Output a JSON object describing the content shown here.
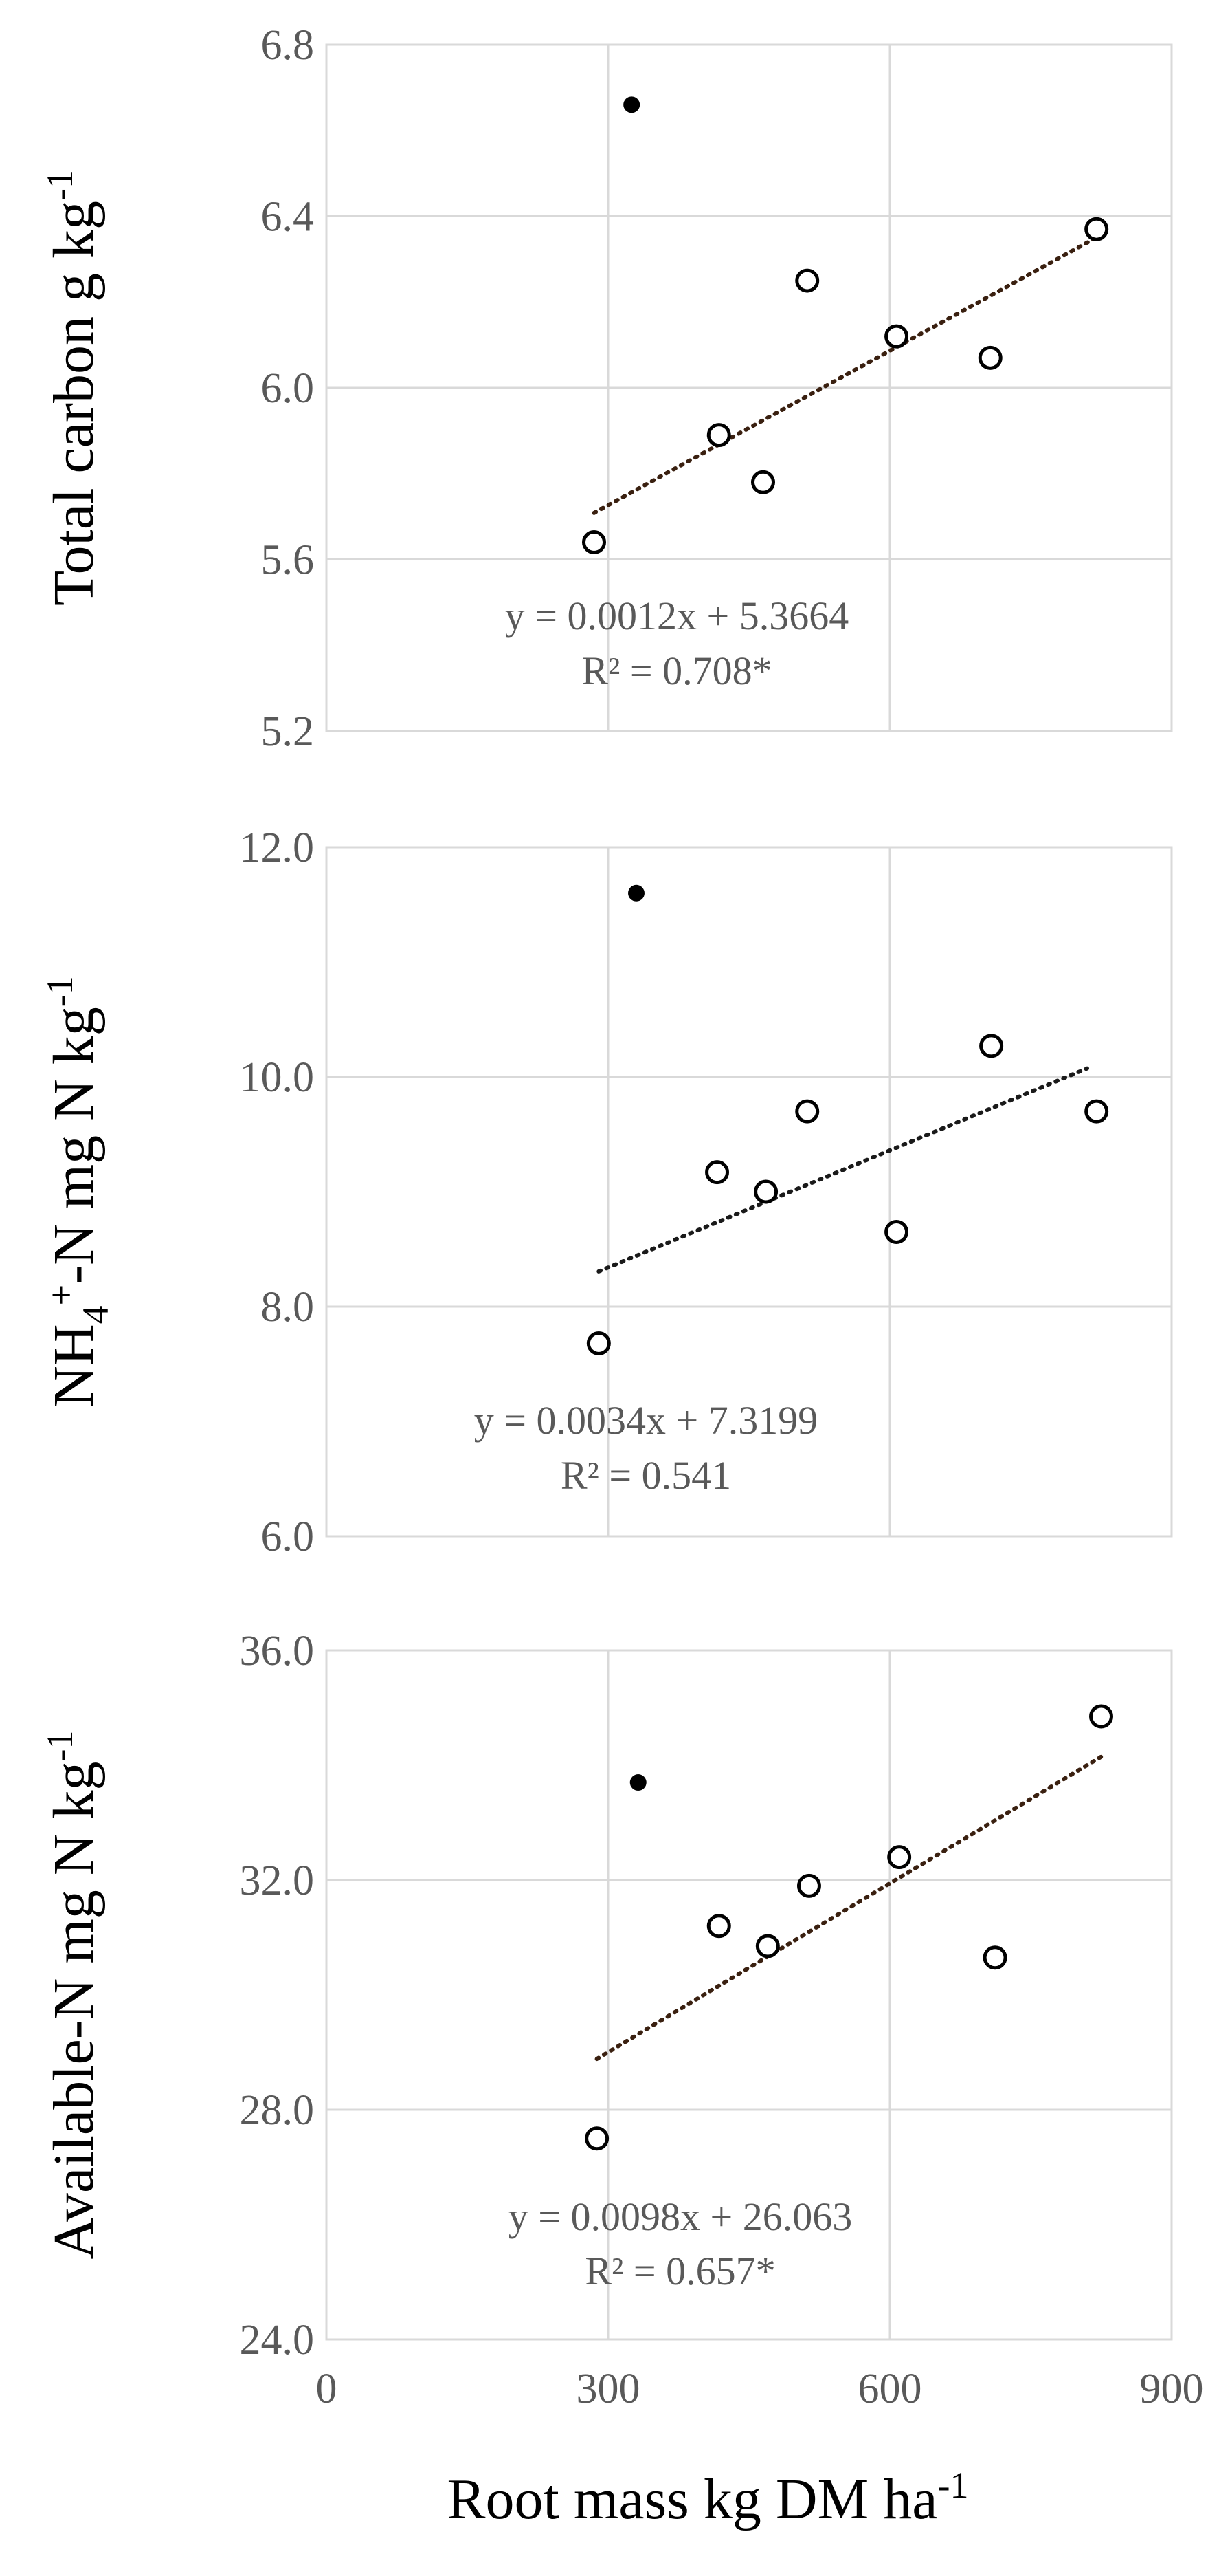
{
  "chart_data": [
    {
      "type": "scatter",
      "ylabel": "Total carbon g kg",
      "ylabel_sup": "-1",
      "ylim": [
        5.2,
        6.8
      ],
      "yticks": [
        "5.2",
        "5.6",
        "6.0",
        "6.4",
        "6.8"
      ],
      "xlim": [
        0,
        900
      ],
      "grid": true,
      "points": [
        {
          "x": 285,
          "y": 5.64
        },
        {
          "x": 418,
          "y": 5.89
        },
        {
          "x": 465,
          "y": 5.78
        },
        {
          "x": 512,
          "y": 6.25
        },
        {
          "x": 607,
          "y": 6.12
        },
        {
          "x": 707,
          "y": 6.07
        },
        {
          "x": 820,
          "y": 6.37
        }
      ],
      "outlier": {
        "x": 325,
        "y": 6.66
      },
      "trendline": {
        "x1": 285,
        "x2": 820,
        "slope": 0.0012,
        "intercept": 5.3664
      },
      "equation": "y = 0.0012x + 5.3664",
      "r2": "R² = 0.708*"
    },
    {
      "type": "scatter",
      "ylabel_parts": [
        "NH",
        "4",
        "+",
        "-N mg N kg",
        "-1"
      ],
      "ylim": [
        6.0,
        12.0
      ],
      "yticks": [
        "6.0",
        "8.0",
        "10.0",
        "12.0"
      ],
      "xlim": [
        0,
        900
      ],
      "grid": true,
      "points": [
        {
          "x": 290,
          "y": 7.68
        },
        {
          "x": 416,
          "y": 9.17
        },
        {
          "x": 468,
          "y": 9.0
        },
        {
          "x": 512,
          "y": 9.7
        },
        {
          "x": 607,
          "y": 8.65
        },
        {
          "x": 708,
          "y": 10.27
        },
        {
          "x": 820,
          "y": 9.7
        }
      ],
      "outlier": {
        "x": 330,
        "y": 11.6
      },
      "trendline": {
        "x1": 290,
        "x2": 810,
        "slope": 0.0034,
        "intercept": 7.3199
      },
      "equation": "y = 0.0034x + 7.3199",
      "r2": "R² = 0.541"
    },
    {
      "type": "scatter",
      "ylabel": "Available-N mg N kg",
      "ylabel_sup": "-1",
      "ylim": [
        24.0,
        36.0
      ],
      "yticks": [
        "24.0",
        "28.0",
        "32.0",
        "36.0"
      ],
      "xlim": [
        0,
        900
      ],
      "xticks": [
        "0",
        "300",
        "600",
        "900"
      ],
      "xlabel": "Root mass kg DM ha",
      "xlabel_sup": "-1",
      "grid": true,
      "points": [
        {
          "x": 288,
          "y": 27.5
        },
        {
          "x": 418,
          "y": 31.2
        },
        {
          "x": 470,
          "y": 30.85
        },
        {
          "x": 514,
          "y": 31.9
        },
        {
          "x": 610,
          "y": 32.4
        },
        {
          "x": 712,
          "y": 30.65
        },
        {
          "x": 825,
          "y": 34.85
        }
      ],
      "outlier": {
        "x": 332,
        "y": 33.7
      },
      "trendline": {
        "x1": 288,
        "x2": 825,
        "slope": 0.0098,
        "intercept": 26.063
      },
      "equation": "y = 0.0098x + 26.063",
      "r2": "R² = 0.657*"
    }
  ]
}
